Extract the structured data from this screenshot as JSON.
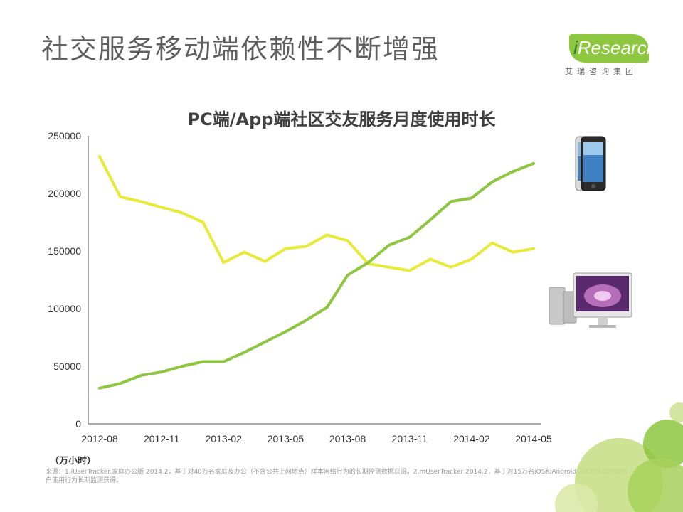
{
  "page": {
    "title": "社交服务移动端依赖性不断增强",
    "unit": "（万小时）",
    "source": "来源：1.iUserTracker.家庭办公版 2014.2，基于对40万名家庭及办公（不含公共上网地点）样本网络行为的长期监测数据获得。2.mUserTracker 2014.2，基于对15万名iOS和Android系统的智能终端用户使用行为长期监测获得。"
  },
  "logo": {
    "brand_i": "i",
    "brand_rest": "Research",
    "subtitle": "艾瑞咨询集团"
  },
  "icons": {
    "phone": "smartphone-icon",
    "monitor": "desktop-computer-icon"
  },
  "colors": {
    "pc_line": "#e8ea3a",
    "app_line": "#8dc63f",
    "axis": "#555555"
  },
  "chart_data": {
    "type": "line",
    "title": "PC端/App端社区交友服务月度使用时长",
    "x": [
      "2012-08",
      "2012-09",
      "2012-10",
      "2012-11",
      "2012-12",
      "2013-01",
      "2013-02",
      "2013-03",
      "2013-04",
      "2013-05",
      "2013-06",
      "2013-07",
      "2013-08",
      "2013-09",
      "2013-10",
      "2013-11",
      "2013-12",
      "2014-01",
      "2014-02",
      "2014-03",
      "2014-04",
      "2014-05"
    ],
    "x_tick_labels": [
      "2012-08",
      "2012-11",
      "2013-02",
      "2013-05",
      "2013-08",
      "2013-11",
      "2014-02",
      "2014-05"
    ],
    "series": [
      {
        "values": [
          232000,
          197000,
          193000,
          188000,
          183000,
          175000,
          140000,
          149000,
          141000,
          152000,
          154000,
          164000,
          159000,
          139000,
          136000,
          133000,
          143000,
          136000,
          143000,
          157000,
          149000,
          152000
        ]
      },
      {
        "values": [
          31000,
          35000,
          42000,
          45000,
          50000,
          54000,
          54000,
          62000,
          71000,
          80000,
          90000,
          101000,
          129000,
          140000,
          155000,
          162000,
          177000,
          193000,
          196000,
          210000,
          219000,
          226000
        ]
      }
    ],
    "xlabel": "",
    "ylabel": "",
    "ylim": [
      0,
      250000
    ],
    "y_ticks": [
      0,
      50000,
      100000,
      150000,
      200000,
      250000
    ],
    "grid": false,
    "legend": "none"
  }
}
